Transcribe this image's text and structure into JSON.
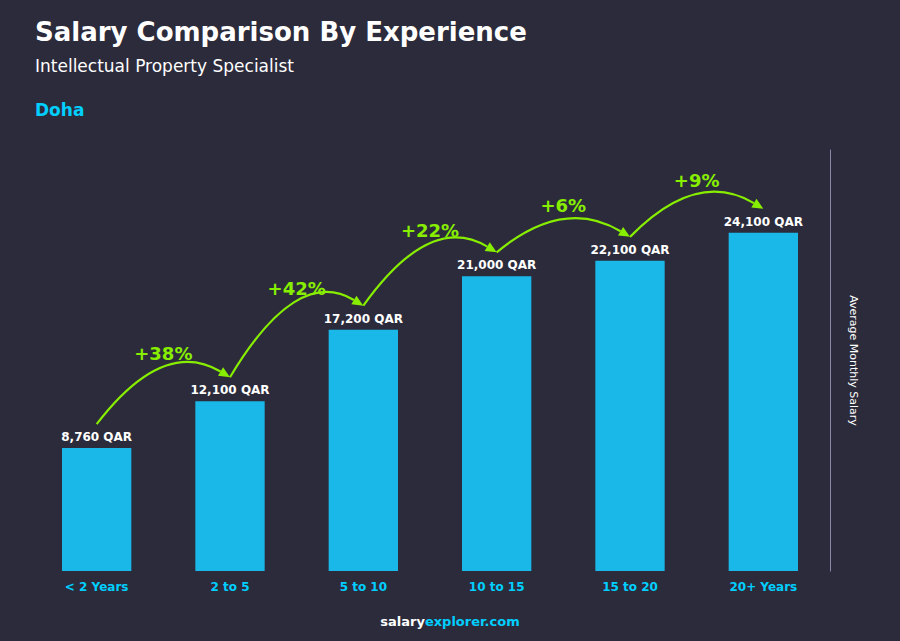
{
  "chart_data": {
    "type": "bar",
    "title": "Salary Comparison By Experience",
    "subtitle": "Intellectual Property Specialist",
    "city": "Doha",
    "categories": [
      "< 2 Years",
      "2 to 5",
      "5 to 10",
      "10 to 15",
      "15 to 20",
      "20+ Years"
    ],
    "values": [
      8760,
      12100,
      17200,
      21000,
      22100,
      24100
    ],
    "value_labels": [
      "8,760 QAR",
      "12,100 QAR",
      "17,200 QAR",
      "21,000 QAR",
      "22,100 QAR",
      "24,100 QAR"
    ],
    "data_labels": true,
    "color": "#1ab8e8",
    "annotations": {
      "texts": [
        "+38%",
        "+42%",
        "+22%",
        "+6%",
        "+9%"
      ],
      "color": "#88ee00"
    },
    "ylabel": "Average Monthly Salary",
    "ylim": [
      0,
      30000
    ],
    "yticks": [],
    "tick_labels": "x",
    "grid": false,
    "footer": [
      "salary",
      "explorer.com"
    ]
  }
}
